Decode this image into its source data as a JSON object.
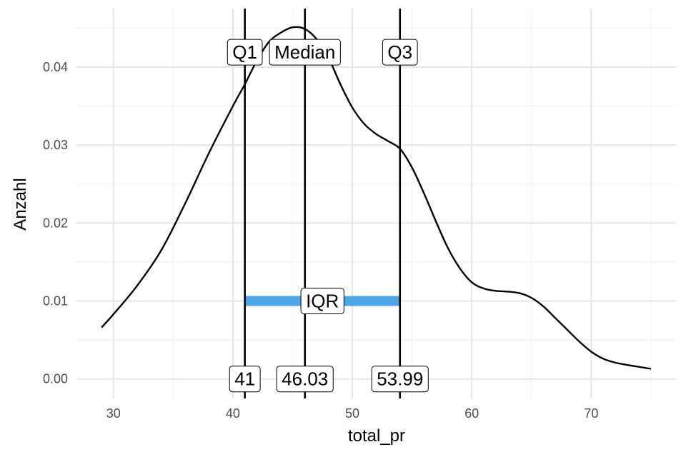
{
  "chart_data": {
    "type": "line",
    "title": "",
    "xlabel": "total_pr",
    "ylabel": "Anzahl",
    "xlim": [
      26.9,
      77.1
    ],
    "ylim": [
      -0.0025,
      0.0475
    ],
    "x_ticks": [
      30,
      40,
      50,
      60,
      70
    ],
    "y_ticks": [
      0.0,
      0.01,
      0.02,
      0.03,
      0.04
    ],
    "x_tick_labels": [
      "30",
      "40",
      "50",
      "60",
      "70"
    ],
    "y_tick_labels": [
      "0.00",
      "0.01",
      "0.02",
      "0.03",
      "0.04"
    ],
    "grid": true,
    "series": [
      {
        "x": [
          29,
          30,
          32,
          34,
          36,
          38,
          40,
          41,
          42,
          43,
          44,
          45,
          46,
          47,
          48,
          49,
          50,
          51,
          52,
          53,
          54,
          55,
          56,
          57,
          58,
          59,
          60,
          61,
          62,
          63,
          64,
          65,
          66,
          67,
          68,
          69,
          70,
          71,
          72,
          73,
          75
        ],
        "y": [
          0.0066,
          0.0083,
          0.012,
          0.0165,
          0.0225,
          0.029,
          0.035,
          0.0378,
          0.0408,
          0.0432,
          0.0444,
          0.0451,
          0.0449,
          0.0436,
          0.0412,
          0.0378,
          0.0348,
          0.0327,
          0.0314,
          0.0305,
          0.0295,
          0.0271,
          0.0238,
          0.0202,
          0.0168,
          0.0142,
          0.0124,
          0.0116,
          0.0113,
          0.0112,
          0.011,
          0.0104,
          0.0093,
          0.0078,
          0.0063,
          0.0048,
          0.0035,
          0.0026,
          0.0021,
          0.0018,
          0.0013
        ],
        "color": "#000000"
      }
    ],
    "vlines": [
      {
        "x": 41,
        "label": "Q1",
        "value_label": "41"
      },
      {
        "x": 46.03,
        "label": "Median",
        "value_label": "46.03"
      },
      {
        "x": 53.99,
        "label": "Q3",
        "value_label": "53.99"
      }
    ],
    "label_y": 0.0419,
    "value_label_y": 0.0,
    "iqr": {
      "x1": 41,
      "x2": 53.99,
      "y": 0.01,
      "label": "IQR",
      "color": "#4da6e6"
    }
  }
}
